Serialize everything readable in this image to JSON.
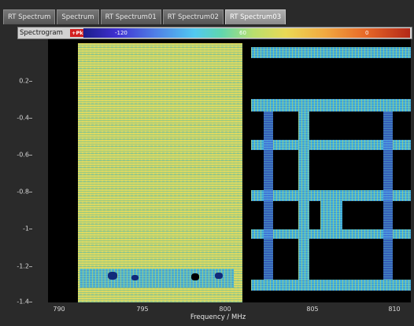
{
  "tabs": [
    {
      "label": "RT Spectrum",
      "active": false
    },
    {
      "label": "Spectrum",
      "active": false
    },
    {
      "label": "RT Spectrum01",
      "active": false
    },
    {
      "label": "RT Spectrum02",
      "active": false
    },
    {
      "label": "RT Spectrum03",
      "active": true
    }
  ],
  "spectrogram": {
    "title": "Spectrogram",
    "badge": "+Pk",
    "colorbar_labels": [
      "-120",
      "60",
      "0"
    ]
  },
  "plot": {
    "y_ticks": [
      "0.2",
      "-0.4",
      "-0.6",
      "-0.8",
      "-1",
      "-1.2",
      "-1.4"
    ],
    "x_ticks": [
      "790",
      "795",
      "800",
      "805",
      "810"
    ],
    "x_label": "Frequency / MHz"
  },
  "colors": {
    "background": "#2a2a2a",
    "plot": "#000000",
    "active_tab": "#8c8c8c",
    "noise_yellow": "#d6d768",
    "signal_cyan": "#48b8d8",
    "signal_blue": "#3e6fd8"
  }
}
